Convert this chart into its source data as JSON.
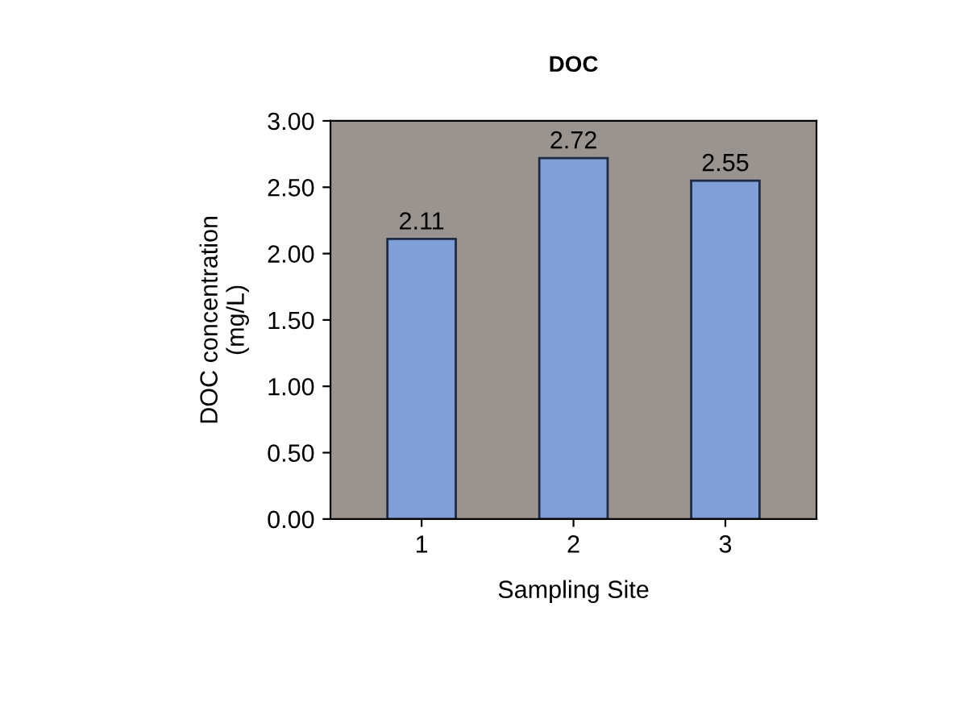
{
  "chart_data": {
    "type": "bar",
    "title": "DOC",
    "xlabel": "Sampling Site",
    "ylabel": "DOC concentration\n(mg/L)",
    "categories": [
      "1",
      "2",
      "3"
    ],
    "values": [
      2.11,
      2.72,
      2.55
    ],
    "color": "#7f9fd6",
    "data_labels": true,
    "ylim": [
      0,
      3
    ],
    "yticks": [
      {
        "value": 0,
        "label": "0.00"
      },
      {
        "value": 0.5,
        "label": "0.50"
      },
      {
        "value": 1,
        "label": "1.00"
      },
      {
        "value": 1.5,
        "label": "1.50"
      },
      {
        "value": 2,
        "label": "2.00"
      },
      {
        "value": 2.5,
        "label": "2.50"
      },
      {
        "value": 3,
        "label": "3.00"
      }
    ],
    "grid": false,
    "legend": false
  }
}
